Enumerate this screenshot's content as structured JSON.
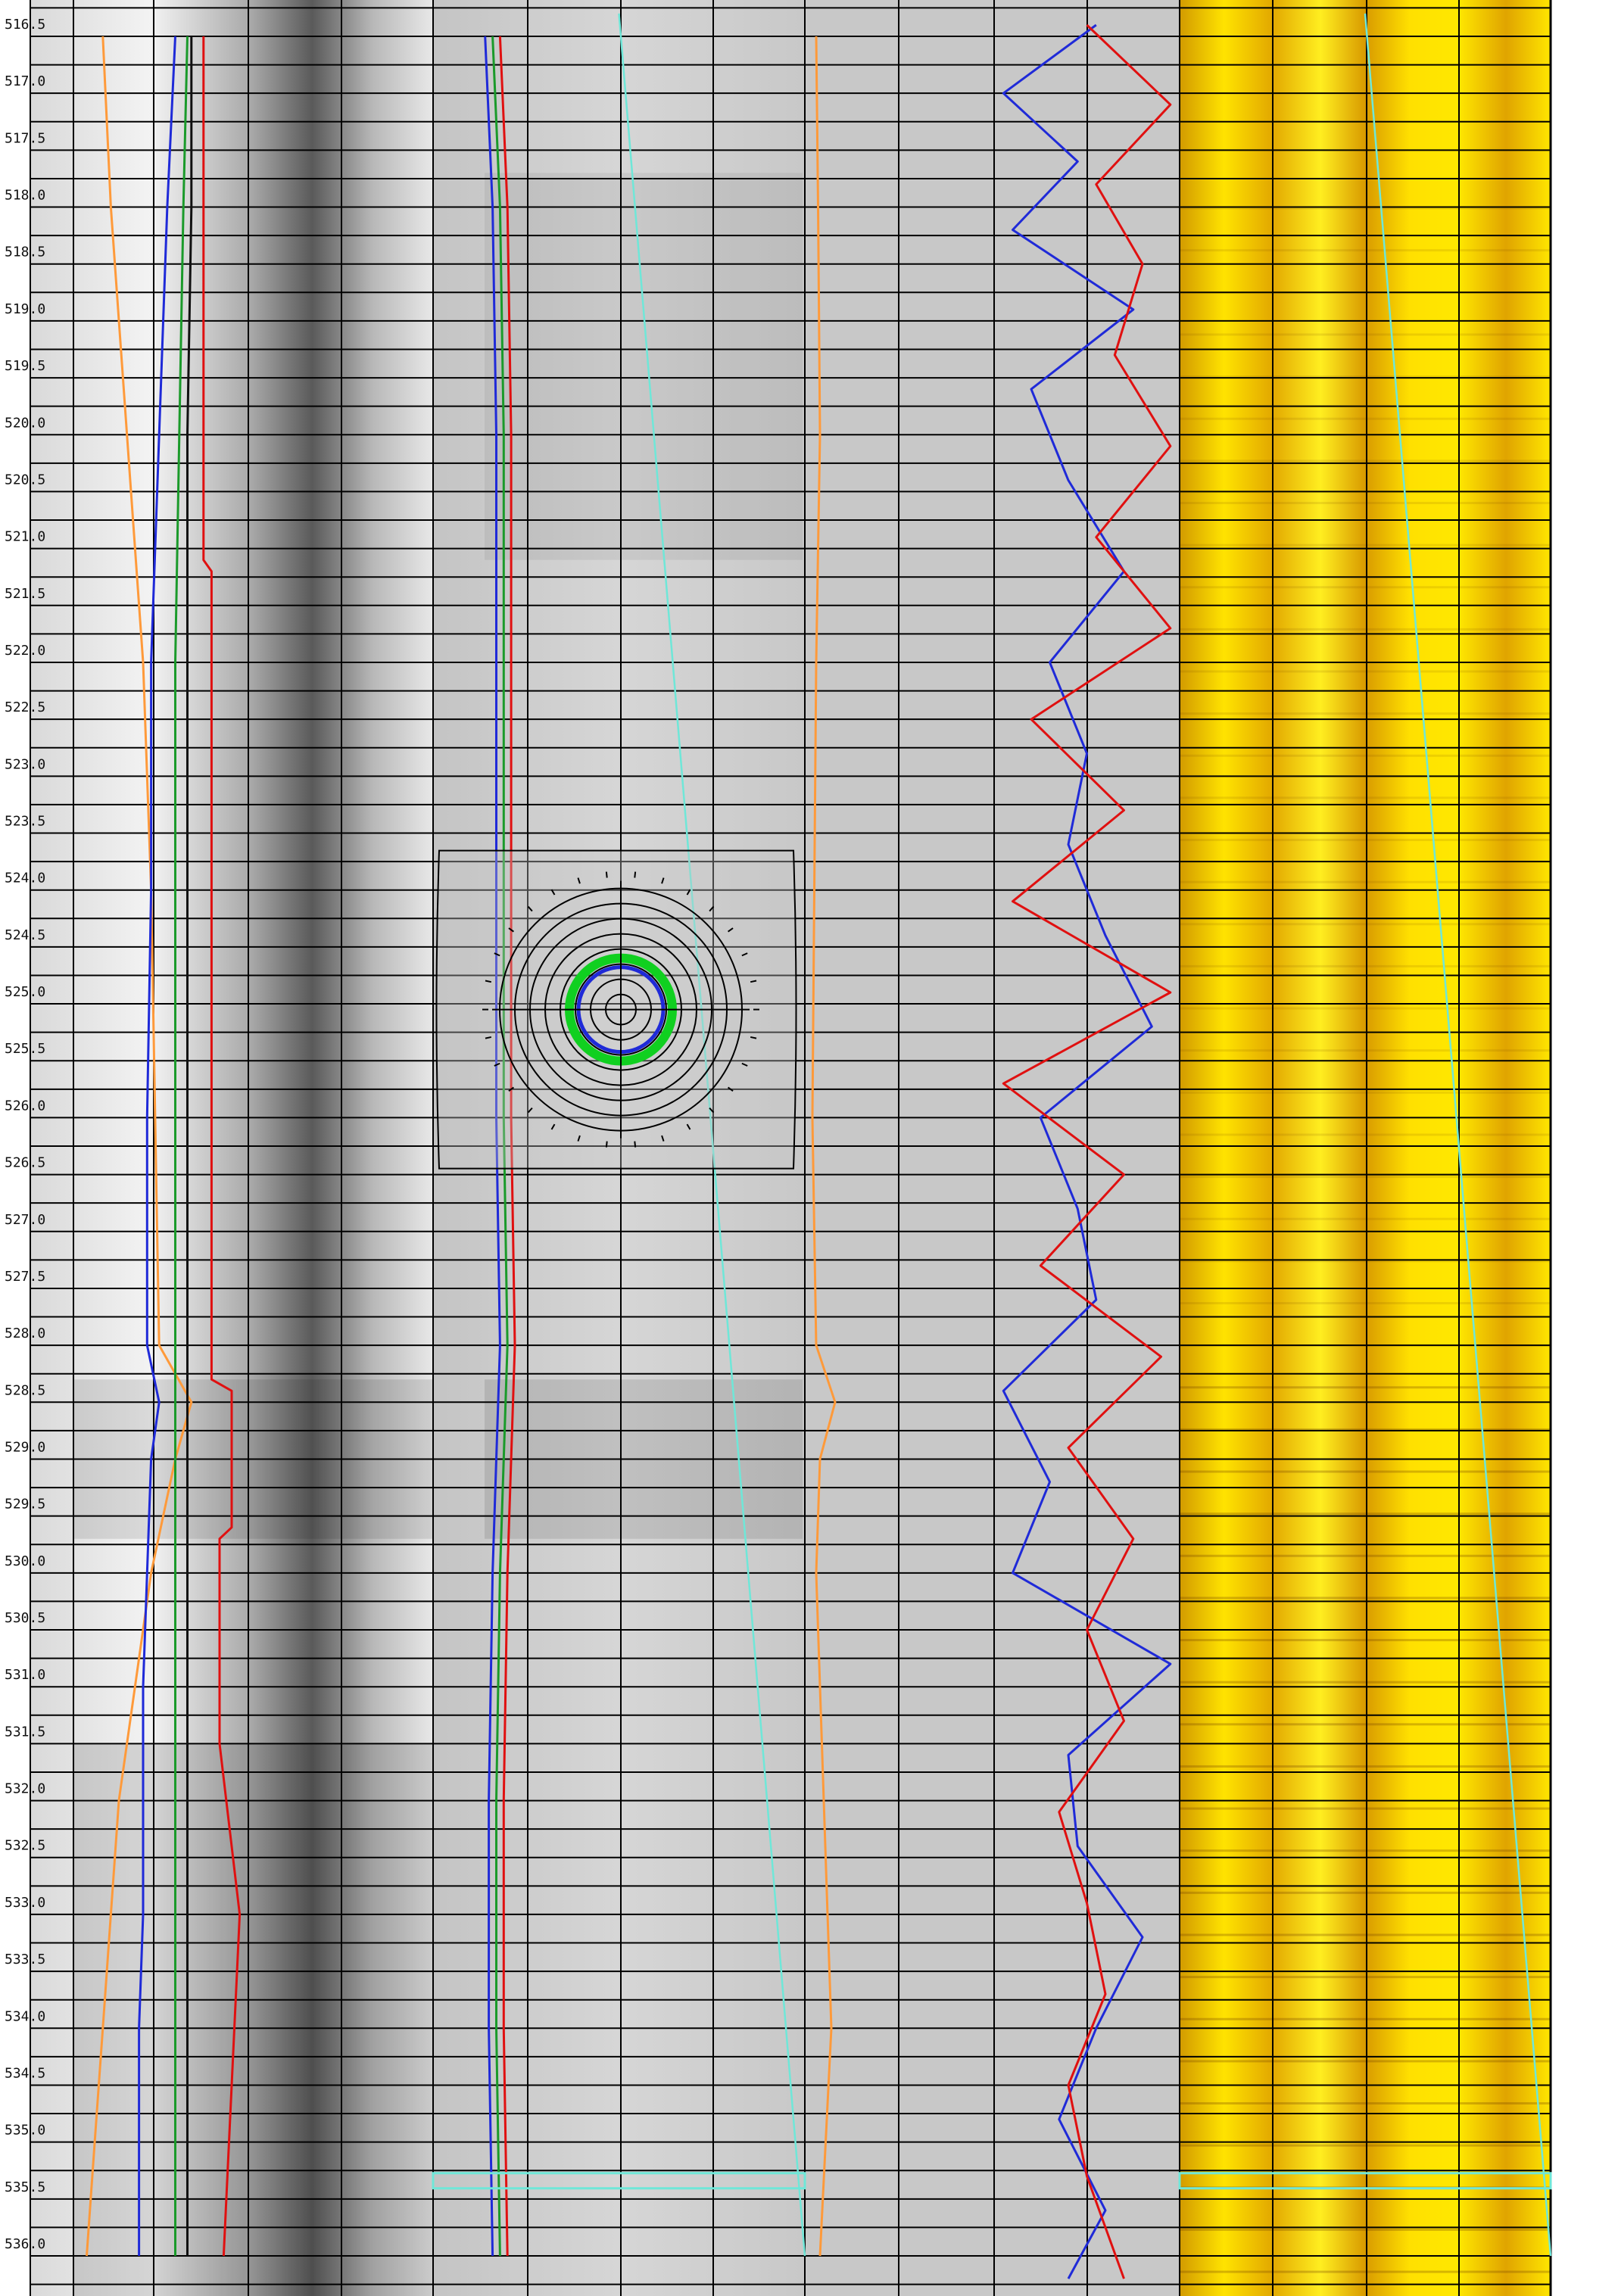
{
  "chart_data": {
    "type": "line",
    "title": "",
    "xlabel": "",
    "ylabel": "",
    "y_axis": {
      "unit": "",
      "range": [
        516.3,
        536.4
      ],
      "reversed": true,
      "tick_step": 0.5,
      "grid_minor_step": 0.25
    },
    "depth_ticks": [
      "516.5",
      "517.0",
      "517.5",
      "518.0",
      "518.5",
      "519.0",
      "519.5",
      "520.0",
      "520.5",
      "521.0",
      "521.5",
      "522.0",
      "522.5",
      "523.0",
      "523.5",
      "524.0",
      "524.5",
      "525.0",
      "525.5",
      "526.0",
      "526.5",
      "527.0",
      "527.5",
      "528.0",
      "528.5",
      "529.0",
      "529.5",
      "530.0",
      "530.5",
      "531.0",
      "531.5",
      "532.0",
      "532.5",
      "533.0",
      "533.5",
      "534.0",
      "534.5",
      "535.0",
      "535.5",
      "536.0"
    ],
    "grid": true,
    "legend": "none",
    "tracks": [
      {
        "id": "track-1",
        "type": "curves+image",
        "background": "grayscale-amplitude",
        "curves": [
          {
            "color": "#ff9a3a",
            "depths": [
              516.5,
              518,
              520,
              522,
              524,
              526,
              528,
              528.5,
              529,
              530,
              531,
              532,
              533,
              534,
              535,
              536
            ],
            "values": [
              0.18,
              0.2,
              0.24,
              0.28,
              0.3,
              0.31,
              0.32,
              0.4,
              0.36,
              0.3,
              0.26,
              0.22,
              0.2,
              0.18,
              0.16,
              0.14
            ]
          },
          {
            "color": "#1f2ad8",
            "depths": [
              516.5,
              518,
              520,
              522,
              524,
              526,
              528,
              528.5,
              529,
              530,
              531,
              532,
              533,
              534,
              535,
              536
            ],
            "values": [
              0.36,
              0.34,
              0.32,
              0.3,
              0.3,
              0.29,
              0.29,
              0.32,
              0.3,
              0.29,
              0.28,
              0.28,
              0.28,
              0.27,
              0.27,
              0.27
            ]
          },
          {
            "color": "#1a9a2a",
            "depths": [
              516.5,
              518,
              520,
              522,
              524,
              526,
              528,
              530,
              532,
              534,
              536
            ],
            "values": [
              0.39,
              0.38,
              0.37,
              0.36,
              0.36,
              0.36,
              0.36,
              0.36,
              0.36,
              0.36,
              0.36
            ]
          },
          {
            "color": "#111111",
            "depths": [
              516.5,
              518,
              520,
              522,
              524,
              526,
              528,
              530,
              532,
              534,
              536
            ],
            "values": [
              0.4,
              0.4,
              0.39,
              0.39,
              0.39,
              0.39,
              0.39,
              0.39,
              0.39,
              0.39,
              0.39
            ]
          },
          {
            "color": "#e01010",
            "depths": [
              516.5,
              518,
              520,
              521.1,
              521.2,
              523,
              525,
              528.3,
              528.4,
              529.6,
              529.7,
              531.5,
              533,
              534.5,
              536
            ],
            "values": [
              0.43,
              0.43,
              0.43,
              0.43,
              0.45,
              0.45,
              0.45,
              0.45,
              0.5,
              0.5,
              0.47,
              0.47,
              0.52,
              0.5,
              0.48
            ]
          }
        ]
      },
      {
        "id": "track-2",
        "type": "curves+image",
        "background": "grayscale-amplitude",
        "curves": [
          {
            "color": "#1f2ad8",
            "depths": [
              516.5,
              518,
              520,
              522,
              524,
              526,
              528,
              530,
              532,
              534,
              536
            ],
            "values": [
              0.14,
              0.16,
              0.17,
              0.17,
              0.17,
              0.17,
              0.18,
              0.16,
              0.15,
              0.15,
              0.16
            ]
          },
          {
            "color": "#1a9a2a",
            "depths": [
              516.5,
              518,
              520,
              522,
              524,
              526,
              528,
              530,
              532,
              534,
              536
            ],
            "values": [
              0.16,
              0.18,
              0.19,
              0.19,
              0.19,
              0.19,
              0.2,
              0.18,
              0.17,
              0.17,
              0.18
            ]
          },
          {
            "color": "#e01010",
            "depths": [
              516.5,
              518,
              520,
              522,
              524,
              526,
              528,
              530,
              532,
              534,
              536
            ],
            "values": [
              0.18,
              0.2,
              0.21,
              0.21,
              0.21,
              0.21,
              0.22,
              0.2,
              0.19,
              0.19,
              0.2
            ]
          },
          {
            "color": "#6fe7d8",
            "depths": [
              516.3,
              536.0
            ],
            "values": [
              0.5,
              1.0
            ]
          }
        ]
      },
      {
        "id": "track-3",
        "type": "curves",
        "background": "#c8c8c8",
        "curves": [
          {
            "color": "#ff9a3a",
            "depths": [
              516.5,
              518,
              520,
              522,
              524,
              526,
              528,
              528.5,
              529,
              530,
              532,
              534,
              536
            ],
            "values": [
              0.06,
              0.07,
              0.08,
              0.06,
              0.05,
              0.04,
              0.06,
              0.16,
              0.08,
              0.06,
              0.1,
              0.14,
              0.08
            ]
          }
        ]
      },
      {
        "id": "track-4",
        "type": "curves",
        "background": "#c8c8c8",
        "curves": [
          {
            "color": "#1f2ad8",
            "depths": [
              516.4,
              517.0,
              517.6,
              518.2,
              518.9,
              519.6,
              520.4,
              521.2,
              522.0,
              522.8,
              523.6,
              524.4,
              525.2,
              526.0,
              526.8,
              527.6,
              528.4,
              529.2,
              530.0,
              530.8,
              531.6,
              532.4,
              533.2,
              534.0,
              534.8,
              535.6,
              536.2
            ],
            "values": [
              0.55,
              0.05,
              0.45,
              0.1,
              0.75,
              0.2,
              0.4,
              0.7,
              0.3,
              0.5,
              0.4,
              0.6,
              0.85,
              0.25,
              0.45,
              0.55,
              0.05,
              0.3,
              0.1,
              0.95,
              0.4,
              0.45,
              0.8,
              0.55,
              0.35,
              0.6,
              0.4
            ]
          },
          {
            "color": "#e01010",
            "depths": [
              516.4,
              517.1,
              517.8,
              518.5,
              519.3,
              520.1,
              520.9,
              521.7,
              522.5,
              523.3,
              524.1,
              524.9,
              525.7,
              526.5,
              527.3,
              528.1,
              528.9,
              529.7,
              530.5,
              531.3,
              532.1,
              532.9,
              533.7,
              534.5,
              535.3,
              536.2
            ],
            "values": [
              0.5,
              0.95,
              0.55,
              0.8,
              0.65,
              0.95,
              0.55,
              0.95,
              0.2,
              0.7,
              0.1,
              0.95,
              0.05,
              0.7,
              0.25,
              0.9,
              0.4,
              0.75,
              0.5,
              0.7,
              0.35,
              0.5,
              0.6,
              0.4,
              0.5,
              0.7
            ]
          }
        ]
      },
      {
        "id": "track-5",
        "type": "image",
        "background": "yellow-amplitude",
        "curves": [
          {
            "color": "#6fe7d8",
            "depths": [
              516.3,
              536.0
            ],
            "values": [
              0.5,
              1.0
            ]
          }
        ]
      }
    ],
    "horizontal_markers": [
      {
        "color": "#6fe7d8",
        "depth": 535.3
      }
    ],
    "inset": {
      "type": "polar",
      "center_depth": 525.05,
      "rings": 8,
      "features": [
        "green-ring",
        "blue-ring"
      ]
    }
  }
}
